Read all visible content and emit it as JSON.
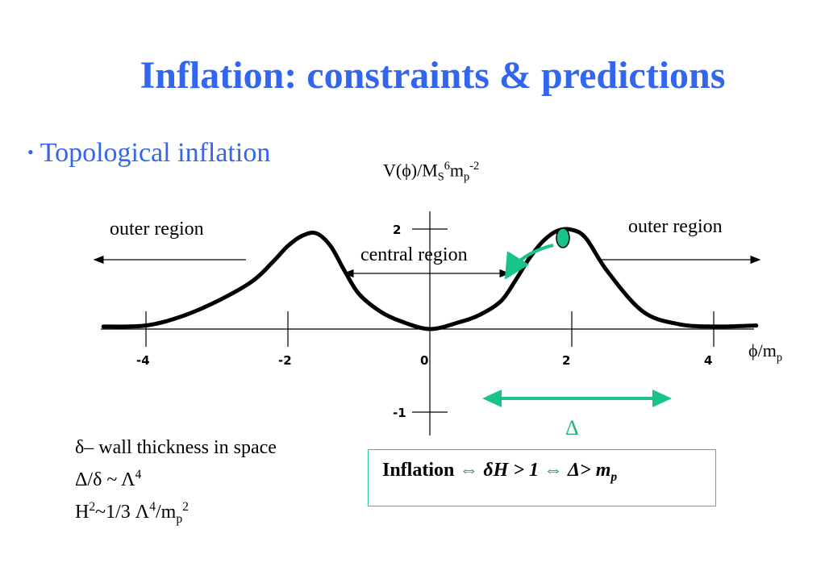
{
  "slide": {
    "title": "Inflation: constraints & predictions",
    "bullet": "Topological inflation"
  },
  "colors": {
    "title": "#3366ee",
    "accent": "#19c48a",
    "curve": "#000000",
    "box_border": "#2cc48f"
  },
  "labels": {
    "outer_left": "outer region",
    "outer_right": "outer region",
    "central": "central region",
    "delta": "Δ"
  },
  "chart_data": {
    "type": "line",
    "ylabel": {
      "base": "V(ϕ)/M",
      "sub1": "S",
      "sup1": "6",
      "mid": "m",
      "sub2": "p",
      "sup2": "-2"
    },
    "xlabel": {
      "base": "ϕ/m",
      "sub": "p"
    },
    "x_ticks": [
      "-4",
      "-2",
      "0",
      "2",
      "4"
    ],
    "y_ticks": [
      "2",
      "-1"
    ],
    "xlim": [
      -4.3,
      4.6
    ],
    "ylim": [
      -1.6,
      2.7
    ],
    "series": [
      {
        "x": [
          -4.6,
          -4.0,
          -3.5,
          -3.0,
          -2.5,
          -2.2,
          -2.0,
          -1.8,
          -1.6,
          -1.4,
          -1.2,
          -1.0,
          -0.7,
          -0.4,
          0.0,
          0.4,
          0.7,
          1.0,
          1.2,
          1.4,
          1.6,
          1.8,
          2.0,
          2.2,
          2.5,
          3.0,
          3.5,
          4.0,
          4.6
        ],
        "y": [
          0.05,
          0.07,
          0.25,
          0.55,
          0.95,
          1.35,
          1.65,
          1.85,
          1.9,
          1.65,
          1.15,
          0.7,
          0.35,
          0.15,
          0.0,
          0.13,
          0.28,
          0.55,
          0.95,
          1.4,
          1.75,
          1.95,
          1.97,
          1.8,
          1.15,
          0.35,
          0.1,
          0.05,
          0.07
        ]
      }
    ],
    "grid": false
  },
  "notes": {
    "line1": "δ– wall thickness in space",
    "line2": "Δ/δ ~ Λ",
    "line2_sup": "4",
    "line3_a": "H",
    "line3_sup1": "2",
    "line3_b": "~1/3 Λ",
    "line3_sup2": "4",
    "line3_c": "/m",
    "line3_sub": "p",
    "line3_sup3": "2"
  },
  "inflation_box": {
    "word": "Inflation",
    "iff": "⇔",
    "cond1": "δH > 1",
    "cond2": "Δ> m",
    "cond2_sub": "p"
  }
}
